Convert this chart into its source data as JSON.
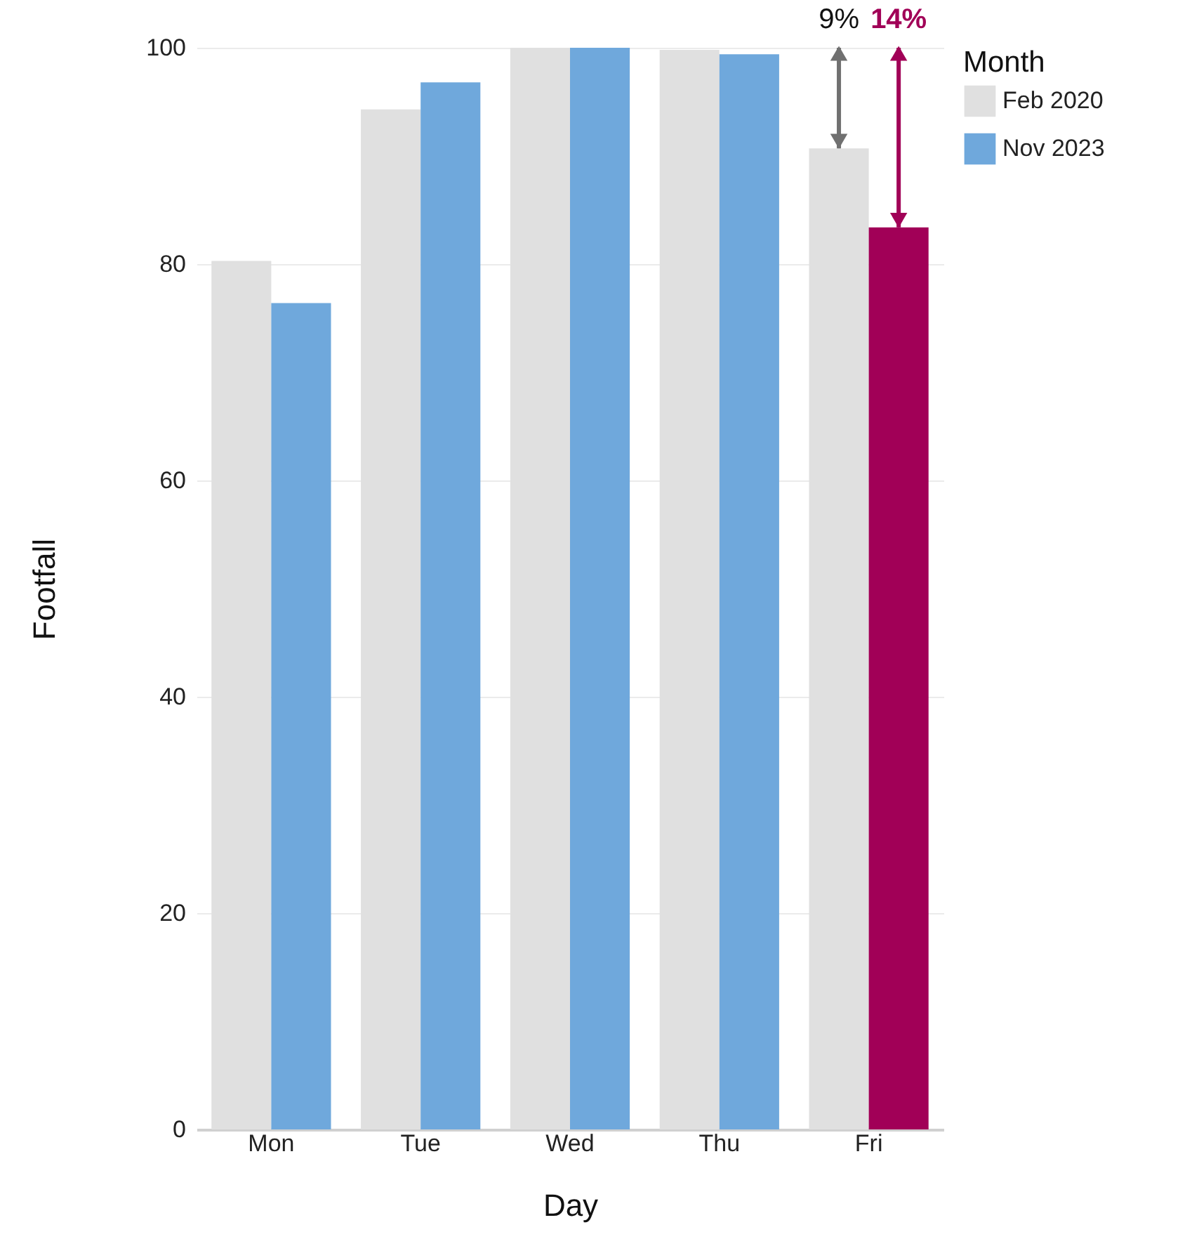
{
  "chart_data": {
    "type": "bar",
    "xlabel": "Day",
    "ylabel": "Footfall",
    "legend_title": "Month",
    "legend": "top right",
    "grid": "y",
    "categories": [
      "Mon",
      "Tue",
      "Wed",
      "Thu",
      "Fri"
    ],
    "series": [
      {
        "name": "Feb 2020",
        "color": "#e0e0e0",
        "values": [
          80.3,
          94.3,
          100,
          99.8,
          90.7
        ]
      },
      {
        "name": "Nov 2023",
        "color": "#6fa8dc",
        "colors": [
          "#6fa8dc",
          "#6fa8dc",
          "#6fa8dc",
          "#6fa8dc",
          "#a10057"
        ],
        "values": [
          76.4,
          96.8,
          100,
          99.4,
          83.4
        ]
      }
    ],
    "ylim": [
      0,
      100
    ],
    "yticks": [
      0,
      20,
      40,
      60,
      80,
      100
    ],
    "annotations": [
      "9%",
      "14%"
    ]
  }
}
